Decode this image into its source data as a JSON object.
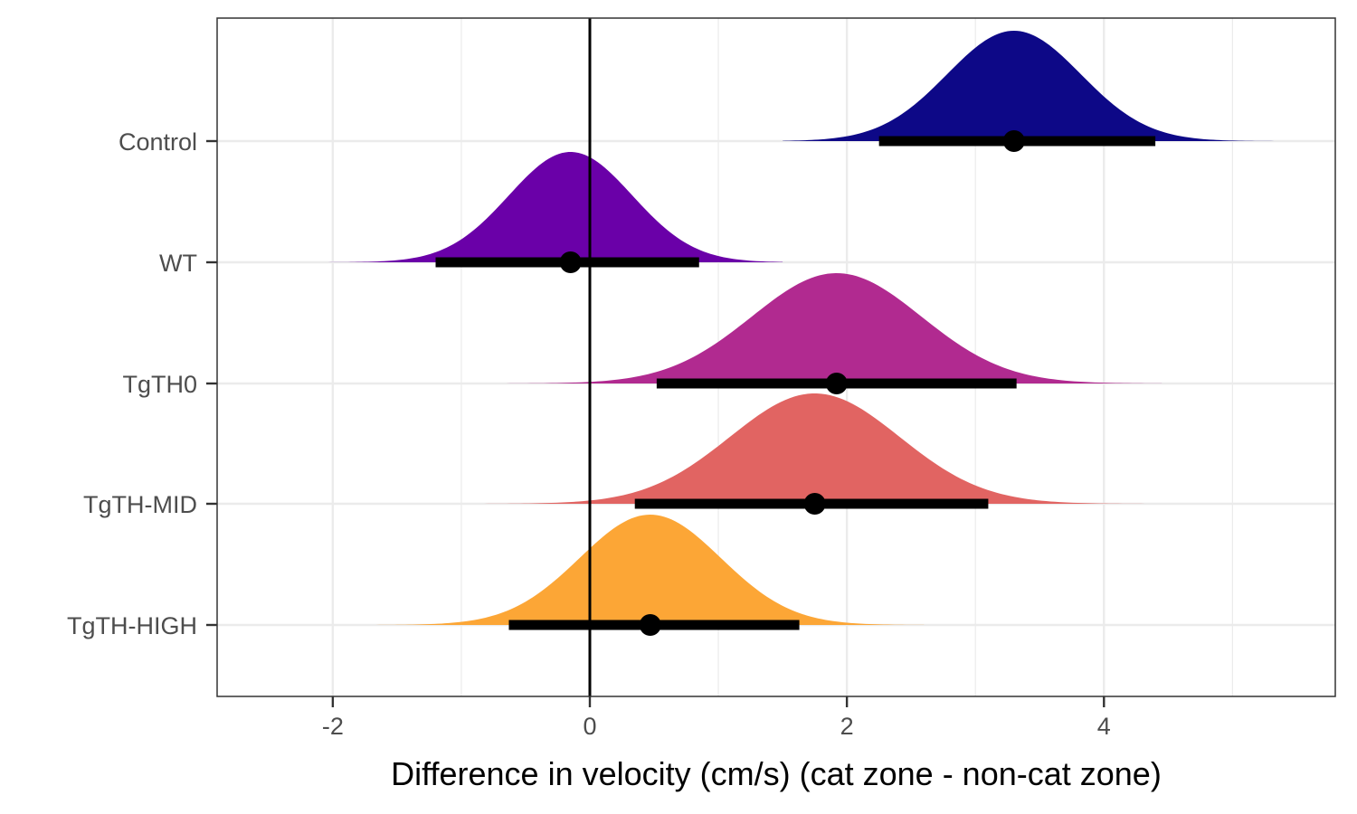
{
  "chart_data": {
    "type": "halfeye",
    "title": "",
    "xlabel": "Difference in velocity (cm/s) (cat zone - non-cat zone)",
    "ylabel": "",
    "xlim": [
      -2.9,
      5.8
    ],
    "xticks": [
      -2,
      0,
      2,
      4
    ],
    "xtick_labels": [
      "-2",
      "0",
      "2",
      "4"
    ],
    "reference_line_x": 0,
    "grid": true,
    "legend": "none",
    "categories": [
      "Control",
      "WT",
      "TgTH0",
      "TgTH-MID",
      "TgTH-HIGH"
    ],
    "series": [
      {
        "name": "Control",
        "color": "#0d0887",
        "point": 3.3,
        "interval": [
          2.25,
          4.4
        ],
        "density_mean": 3.3,
        "density_sd": 0.52,
        "density_range": [
          1.5,
          5.5
        ]
      },
      {
        "name": "WT",
        "color": "#6a00a8",
        "point": -0.15,
        "interval": [
          -1.2,
          0.85
        ],
        "density_mean": -0.15,
        "density_sd": 0.48,
        "density_range": [
          -2.6,
          1.5
        ]
      },
      {
        "name": "TgTH0",
        "color": "#b12a90",
        "point": 1.92,
        "interval": [
          0.52,
          3.32
        ],
        "density_mean": 1.92,
        "density_sd": 0.66,
        "density_range": [
          -0.75,
          4.45
        ]
      },
      {
        "name": "TgTH-MID",
        "color": "#e16462",
        "point": 1.75,
        "interval": [
          0.35,
          3.1
        ],
        "density_mean": 1.75,
        "density_sd": 0.66,
        "density_range": [
          -1.0,
          4.6
        ]
      },
      {
        "name": "TgTH-HIGH",
        "color": "#fca636",
        "point": 0.47,
        "interval": [
          -0.63,
          1.63
        ],
        "density_mean": 0.47,
        "density_sd": 0.55,
        "density_range": [
          -1.95,
          2.6
        ]
      }
    ]
  }
}
